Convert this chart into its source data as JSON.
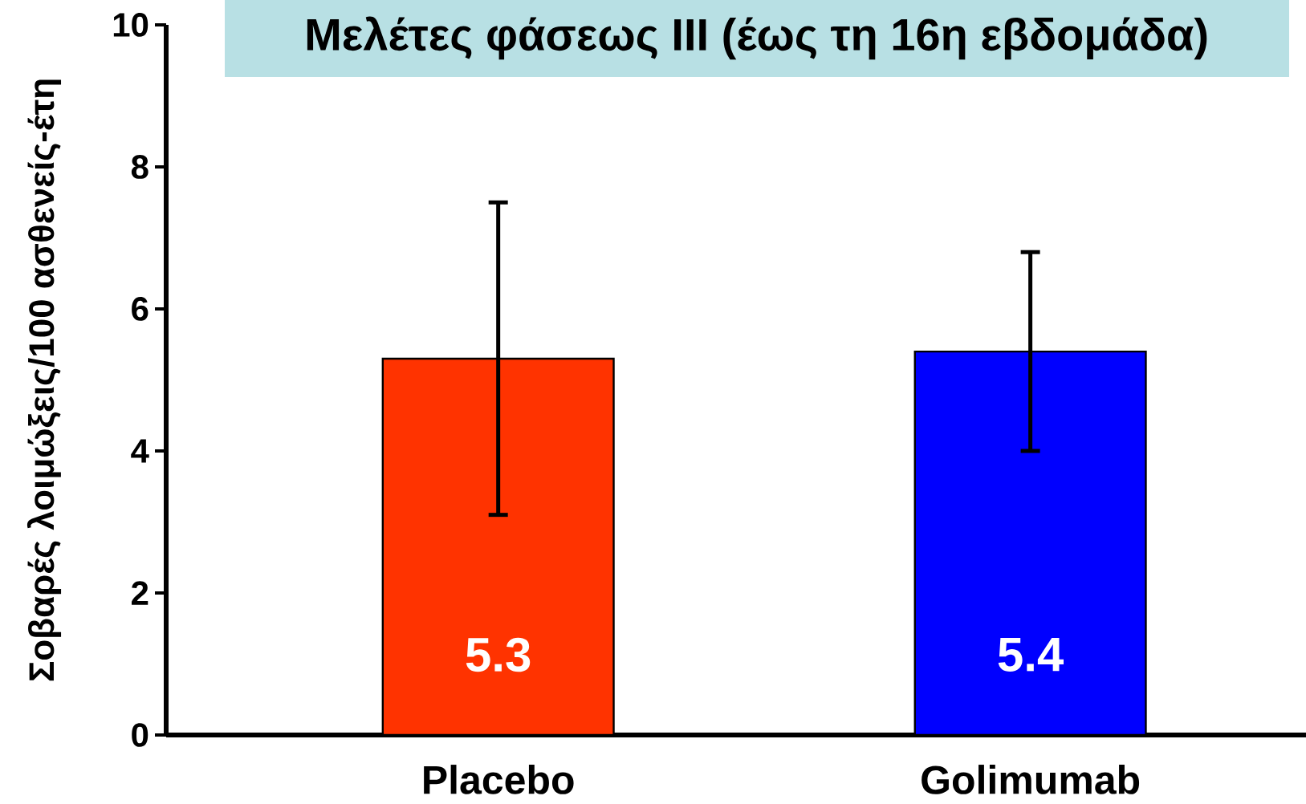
{
  "chart_data": {
    "type": "bar",
    "title": "Μελέτες φάσεως ΙΙΙ (έως τη 16η εβδομάδα)",
    "ylabel": "Σοβαρές λοιμώξεις/100 ασθενείς-έτη",
    "categories": [
      "Placebo",
      "Golimumab"
    ],
    "values": [
      5.3,
      5.4
    ],
    "colors": [
      "#ff3300",
      "#0000ff"
    ],
    "errors": [
      [
        3.1,
        7.5
      ],
      [
        4.0,
        6.8
      ]
    ],
    "value_labels": [
      "5.3",
      "5.4"
    ],
    "ylim": [
      0,
      10
    ],
    "yticks": [
      0,
      2,
      4,
      6,
      8,
      10
    ]
  }
}
